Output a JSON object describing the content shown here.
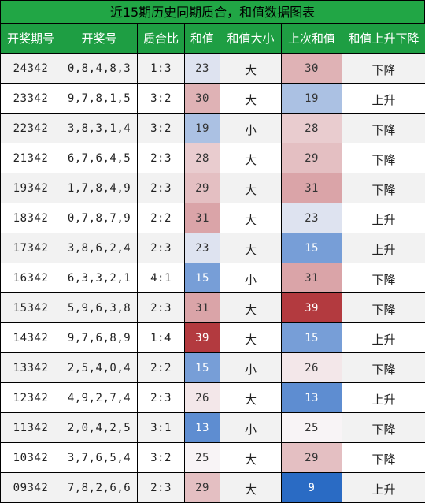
{
  "title": "近15期历史同期质合，和值数据图表",
  "headers": [
    "开奖期号",
    "开奖号",
    "质合比",
    "和值",
    "和值大小",
    "上次和值",
    "和值上升下降"
  ],
  "colors": {
    "header_bg": "#1e9e43",
    "title_bg": "#21a645",
    "heat_low": "#2a6bc4",
    "heat_high": "#b33a3f"
  },
  "rows": [
    {
      "issue": "24342",
      "numbers": "0,8,4,8,3",
      "ratio": "1:3",
      "sum": "23",
      "size": "大",
      "prev_sum": "30",
      "trend": "下降"
    },
    {
      "issue": "23342",
      "numbers": "9,7,8,1,5",
      "ratio": "3:2",
      "sum": "30",
      "size": "大",
      "prev_sum": "19",
      "trend": "上升"
    },
    {
      "issue": "22342",
      "numbers": "3,8,3,1,4",
      "ratio": "3:2",
      "sum": "19",
      "size": "小",
      "prev_sum": "28",
      "trend": "下降"
    },
    {
      "issue": "21342",
      "numbers": "6,7,6,4,5",
      "ratio": "2:3",
      "sum": "28",
      "size": "大",
      "prev_sum": "29",
      "trend": "下降"
    },
    {
      "issue": "19342",
      "numbers": "1,7,8,4,9",
      "ratio": "2:3",
      "sum": "29",
      "size": "大",
      "prev_sum": "31",
      "trend": "下降"
    },
    {
      "issue": "18342",
      "numbers": "0,7,8,7,9",
      "ratio": "2:2",
      "sum": "31",
      "size": "大",
      "prev_sum": "23",
      "trend": "上升"
    },
    {
      "issue": "17342",
      "numbers": "3,8,6,2,4",
      "ratio": "2:3",
      "sum": "23",
      "size": "大",
      "prev_sum": "15",
      "trend": "上升"
    },
    {
      "issue": "16342",
      "numbers": "6,3,3,2,1",
      "ratio": "4:1",
      "sum": "15",
      "size": "小",
      "prev_sum": "31",
      "trend": "下降"
    },
    {
      "issue": "15342",
      "numbers": "5,9,6,3,8",
      "ratio": "2:3",
      "sum": "31",
      "size": "大",
      "prev_sum": "39",
      "trend": "下降"
    },
    {
      "issue": "14342",
      "numbers": "9,7,6,8,9",
      "ratio": "1:4",
      "sum": "39",
      "size": "大",
      "prev_sum": "15",
      "trend": "上升"
    },
    {
      "issue": "13342",
      "numbers": "2,5,4,0,4",
      "ratio": "2:2",
      "sum": "15",
      "size": "小",
      "prev_sum": "26",
      "trend": "下降"
    },
    {
      "issue": "12342",
      "numbers": "4,9,2,7,4",
      "ratio": "2:3",
      "sum": "26",
      "size": "大",
      "prev_sum": "13",
      "trend": "上升"
    },
    {
      "issue": "11342",
      "numbers": "2,0,4,2,5",
      "ratio": "3:1",
      "sum": "13",
      "size": "小",
      "prev_sum": "25",
      "trend": "下降"
    },
    {
      "issue": "10342",
      "numbers": "3,7,6,5,4",
      "ratio": "3:2",
      "sum": "25",
      "size": "大",
      "prev_sum": "29",
      "trend": "下降"
    },
    {
      "issue": "09342",
      "numbers": "7,8,2,6,6",
      "ratio": "2:3",
      "sum": "29",
      "size": "大",
      "prev_sum": "9",
      "trend": "上升"
    }
  ]
}
